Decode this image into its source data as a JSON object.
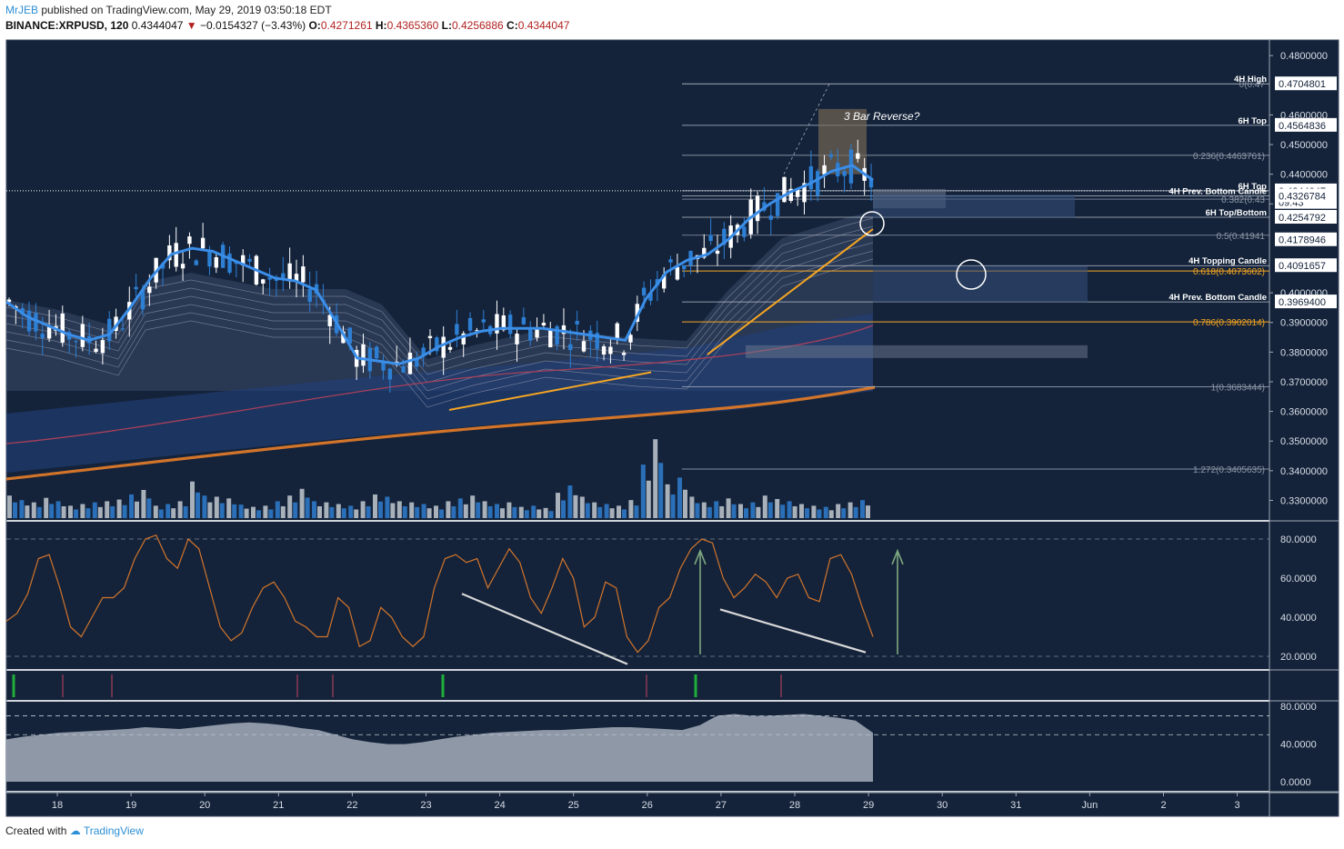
{
  "header": {
    "user": "MrJEB",
    "published": "published on TradingView.com, May 29, 2019 03:50:18 EDT",
    "symbol": "BINANCE:XRPUSD, 120",
    "price": "0.4344047",
    "change_arrow": "▼",
    "change": "−0.0154327 (−3.43%)",
    "o_label": "O:",
    "o_value": "0.4271261",
    "h_label": "H:",
    "h_value": "0.4365360",
    "l_label": "L:",
    "l_value": "0.4256886",
    "c_label": "C:",
    "c_value": "0.4344047"
  },
  "footer": {
    "created_with": "Created with",
    "brand": "TradingView"
  },
  "colors": {
    "background": "#14233a",
    "pane_border": "#3b4a60",
    "candle_up": "#ffffff",
    "candle_down": "#2d7fd4",
    "ema_fast": "#3b8ee8",
    "ema_slow": "#d2742a",
    "ma_red": "#a8405a",
    "trendline": "#f5a623",
    "fib_orange": "#f5a623",
    "stoch": "#d2742a",
    "divergence": "#d8d8d8",
    "arrow": "#7fa87f",
    "volume_up": "#a8b0ba",
    "volume_down": "#2a6fb8"
  },
  "chart_data": [
    {
      "type": "candlestick",
      "title": "BINANCE:XRPUSD, 120",
      "x_labels": [
        "18",
        "19",
        "20",
        "21",
        "22",
        "23",
        "24",
        "25",
        "26",
        "27",
        "28",
        "29",
        "30",
        "31",
        "Jun",
        "2",
        "3"
      ],
      "y_ticks": [
        "0.4800000",
        "0.4600000",
        "0.4500000",
        "0.4400000",
        "0.4300000",
        "0.4000000",
        "0.3900000",
        "0.3800000",
        "0.3700000",
        "0.3600000",
        "0.3500000",
        "0.3400000",
        "0.3300000"
      ],
      "ylim": [
        0.325,
        0.485
      ],
      "price_labels": [
        {
          "text": "0.4704801",
          "value": 0.4704801
        },
        {
          "text": "0.4564836",
          "value": 0.4564836
        },
        {
          "text": "0.4344047",
          "value": 0.4344047
        },
        {
          "text": "09:43",
          "value": 0.4305
        },
        {
          "text": "0.4326784",
          "value": 0.4326784
        },
        {
          "text": "0.4254792",
          "value": 0.4254792
        },
        {
          "text": "0.4178946",
          "value": 0.4178946
        },
        {
          "text": "0.4091657",
          "value": 0.4091657
        },
        {
          "text": "0.3969400",
          "value": 0.39694
        }
      ],
      "levels": [
        {
          "label": "4H High",
          "value": 0.4704801
        },
        {
          "label": "6H Top",
          "value": 0.4564836
        },
        {
          "label": "6H Top",
          "value": 0.4344
        },
        {
          "label": "4H Prev. Bottom Candle",
          "value": 0.4326784
        },
        {
          "label": "6H Top/Bottom",
          "value": 0.4254792
        },
        {
          "label": "4H Topping Candle",
          "value": 0.4091657
        },
        {
          "label": "4H Prev. Bottom Candle",
          "value": 0.39694
        }
      ],
      "fibonacci": [
        {
          "label": "0(0.47",
          "value": 0.4704801
        },
        {
          "label": "0.236(0.4463761)",
          "value": 0.4463761
        },
        {
          "label": "0.382(0.43",
          "value": 0.4316
        },
        {
          "label": "0.5(0.41941",
          "value": 0.4194
        },
        {
          "label": "0.618(0.4073602)",
          "value": 0.4073602
        },
        {
          "label": "0.786(0.3902014)",
          "value": 0.3902014
        },
        {
          "label": "1(0.3683444)",
          "value": 0.3683444
        },
        {
          "label": "1.272(0.3405635)",
          "value": 0.3405635
        }
      ],
      "annotation": "3 Bar Reverse?",
      "ema_fast": [
        0.397,
        0.392,
        0.389,
        0.386,
        0.384,
        0.386,
        0.395,
        0.405,
        0.413,
        0.415,
        0.414,
        0.411,
        0.408,
        0.405,
        0.404,
        0.401,
        0.39,
        0.378,
        0.377,
        0.376,
        0.378,
        0.382,
        0.385,
        0.387,
        0.388,
        0.388,
        0.388,
        0.387,
        0.386,
        0.385,
        0.384,
        0.398,
        0.407,
        0.411,
        0.413,
        0.418,
        0.425,
        0.43,
        0.434,
        0.437,
        0.441,
        0.443,
        0.438
      ]
    },
    {
      "type": "line",
      "title": "",
      "y_ticks": [
        "80.0000",
        "60.0000",
        "40.0000",
        "20.0000"
      ],
      "ylim": [
        10,
        88
      ],
      "bands": [
        80,
        20
      ],
      "values": [
        38,
        42,
        52,
        70,
        72,
        55,
        35,
        30,
        40,
        50,
        50,
        55,
        70,
        80,
        82,
        70,
        65,
        80,
        75,
        55,
        35,
        28,
        32,
        45,
        55,
        58,
        50,
        38,
        35,
        30,
        30,
        50,
        45,
        25,
        28,
        45,
        40,
        30,
        25,
        30,
        55,
        70,
        72,
        68,
        70,
        55,
        65,
        75,
        68,
        50,
        42,
        55,
        70,
        60,
        35,
        40,
        58,
        55,
        30,
        22,
        28,
        45,
        50,
        65,
        75,
        80,
        78,
        60,
        50,
        55,
        62,
        58,
        50,
        60,
        62,
        50,
        48,
        70,
        72,
        62,
        45,
        30
      ]
    },
    {
      "type": "area",
      "title": "",
      "y_ticks": [
        "80.0000",
        "40.0000",
        "0.0000"
      ],
      "ylim": [
        -5,
        85
      ],
      "bands": [
        70,
        50
      ],
      "values": [
        45,
        48,
        50,
        52,
        53,
        54,
        55,
        56,
        58,
        57,
        56,
        58,
        60,
        62,
        63,
        62,
        60,
        57,
        55,
        50,
        45,
        42,
        40,
        40,
        42,
        45,
        48,
        50,
        52,
        53,
        54,
        55,
        55,
        56,
        57,
        58,
        58,
        57,
        56,
        55,
        60,
        70,
        72,
        70,
        70,
        71,
        72,
        70,
        68,
        65,
        52
      ]
    },
    {
      "type": "bar",
      "title": "",
      "values": [
        40,
        32,
        28,
        36,
        30,
        22,
        25,
        28,
        30,
        33,
        42,
        50,
        22,
        25,
        30,
        65,
        40,
        38,
        35,
        24,
        20,
        22,
        30,
        40,
        52,
        30,
        28,
        25,
        22,
        30,
        42,
        38,
        30,
        28,
        25,
        22,
        30,
        35,
        40,
        30,
        25,
        28,
        20,
        22,
        18,
        45,
        58,
        38,
        28,
        25,
        22,
        32,
        95,
        140,
        60,
        72,
        38,
        28,
        30,
        35,
        25,
        28,
        40,
        34,
        30,
        25,
        22,
        20,
        25,
        28,
        32
      ]
    }
  ]
}
